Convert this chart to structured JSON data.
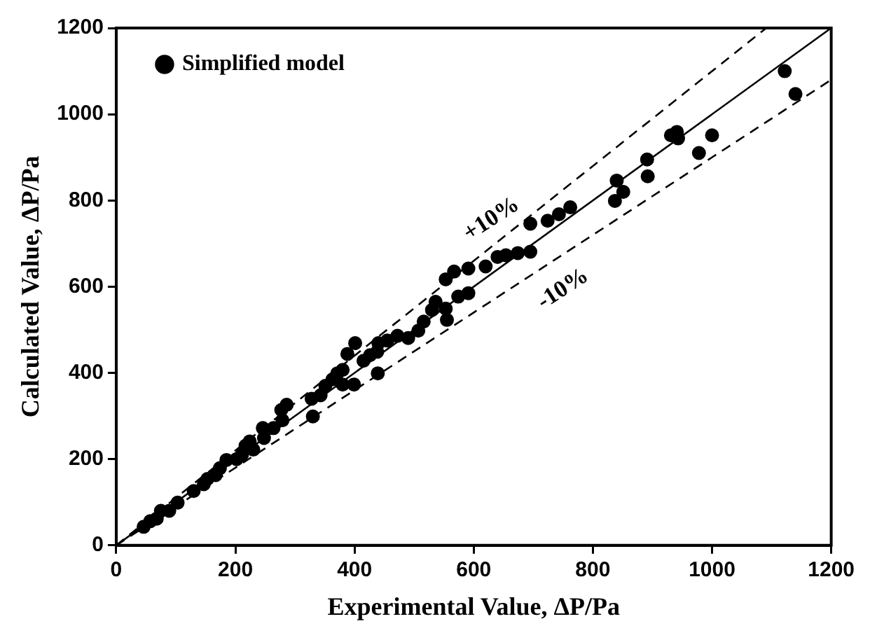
{
  "chart_data": {
    "type": "scatter",
    "xlabel": "Experimental Value, ΔP/Pa",
    "ylabel": "Calculated Value, ΔP/Pa",
    "xlim": [
      0,
      1200
    ],
    "ylim": [
      0,
      1200
    ],
    "xticks": [
      0,
      200,
      400,
      600,
      800,
      1000,
      1200
    ],
    "yticks": [
      0,
      200,
      400,
      600,
      800,
      1000,
      1200
    ],
    "grid": false,
    "legend": "top left",
    "marker": "circle",
    "series": [
      {
        "name": "Simplified model",
        "color": "#000000",
        "x": [
          1122,
          1140,
          1000,
          978,
          941,
          931,
          943,
          891,
          892,
          840,
          851,
          837,
          762,
          743,
          724,
          695,
          695,
          674,
          654,
          640,
          620,
          591,
          591,
          574,
          567,
          553,
          553,
          555,
          536,
          530,
          516,
          507,
          490,
          472,
          455,
          440,
          438,
          426,
          415,
          401,
          439,
          388,
          380,
          399,
          380,
          371,
          363,
          351,
          343,
          328,
          330,
          286,
          277,
          279,
          264,
          246,
          248,
          224,
          217,
          211,
          230,
          202,
          185,
          174,
          167,
          153,
          147,
          130,
          103,
          89,
          75,
          68,
          57,
          46
        ],
        "values": [
          1100,
          1047,
          951,
          910,
          959,
          951,
          944,
          895,
          856,
          846,
          820,
          799,
          784,
          768,
          753,
          746,
          681,
          678,
          673,
          669,
          647,
          642,
          585,
          577,
          635,
          617,
          549,
          523,
          565,
          546,
          519,
          498,
          481,
          486,
          475,
          469,
          449,
          441,
          428,
          469,
          399,
          444,
          407,
          373,
          373,
          399,
          385,
          370,
          348,
          340,
          299,
          326,
          314,
          290,
          272,
          272,
          249,
          241,
          231,
          210,
          222,
          200,
          198,
          179,
          163,
          154,
          142,
          126,
          99,
          80,
          80,
          62,
          56,
          43
        ]
      },
      {
        "type": "line",
        "color": "#000000",
        "line_style": "solid",
        "marker": "none",
        "x": [
          0,
          1200
        ],
        "values": [
          0,
          1200
        ]
      },
      {
        "type": "line",
        "color": "#000000",
        "line_style": "dashed",
        "marker": "none",
        "x": [
          0,
          1091
        ],
        "values": [
          0,
          1200
        ]
      },
      {
        "type": "line",
        "color": "#000000",
        "line_style": "dashed",
        "marker": "none",
        "x": [
          0,
          1200
        ],
        "values": [
          0,
          1080
        ]
      }
    ],
    "annotations": [
      "+10%",
      "-10%"
    ]
  }
}
